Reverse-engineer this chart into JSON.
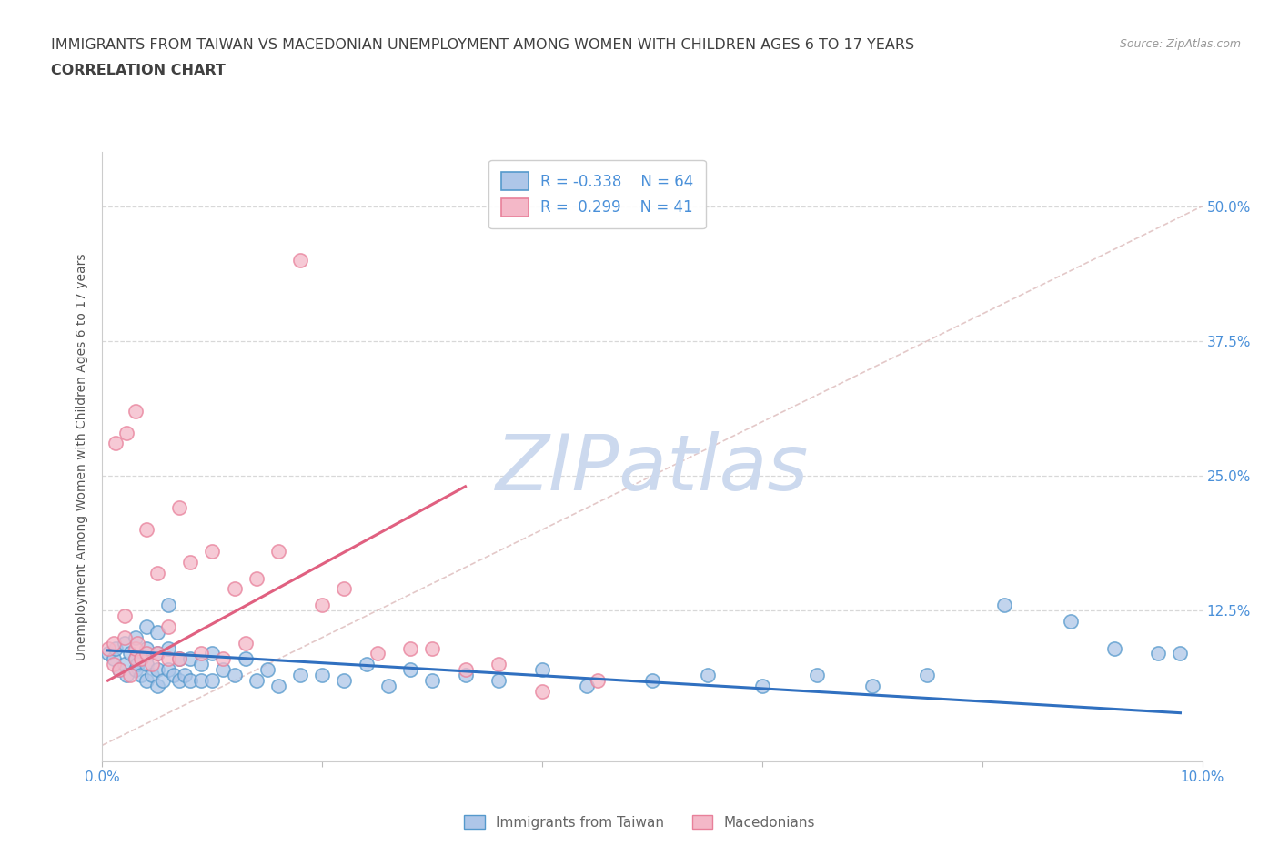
{
  "title_line1": "IMMIGRANTS FROM TAIWAN VS MACEDONIAN UNEMPLOYMENT AMONG WOMEN WITH CHILDREN AGES 6 TO 17 YEARS",
  "title_line2": "CORRELATION CHART",
  "source_text": "Source: ZipAtlas.com",
  "ylabel": "Unemployment Among Women with Children Ages 6 to 17 years",
  "xlim": [
    0.0,
    0.1
  ],
  "ylim": [
    -0.015,
    0.55
  ],
  "xticks": [
    0.0,
    0.02,
    0.04,
    0.06,
    0.08,
    0.1
  ],
  "xticklabels": [
    "0.0%",
    "",
    "",
    "",
    "",
    "10.0%"
  ],
  "yticks_right": [
    0.0,
    0.125,
    0.25,
    0.375,
    0.5
  ],
  "ytick_labels_right": [
    "",
    "12.5%",
    "25.0%",
    "37.5%",
    "50.0%"
  ],
  "taiwan_color": "#aec6e8",
  "macedonian_color": "#f4b8c8",
  "taiwan_edge_color": "#5599cc",
  "macedonian_edge_color": "#e8809a",
  "taiwan_line_color": "#3070c0",
  "macedonian_line_color": "#e06080",
  "diagonal_line_color": "#cccccc",
  "watermark_color": "#ccd9ee",
  "watermark_text": "ZIPatlas",
  "background_color": "#ffffff",
  "grid_color": "#d8d8d8",
  "title_color": "#404040",
  "tick_label_color": "#4a90d9",
  "taiwan_scatter_x": [
    0.0005,
    0.001,
    0.0012,
    0.0015,
    0.002,
    0.002,
    0.0022,
    0.0025,
    0.003,
    0.003,
    0.003,
    0.0032,
    0.0035,
    0.004,
    0.004,
    0.004,
    0.004,
    0.0045,
    0.005,
    0.005,
    0.005,
    0.005,
    0.0055,
    0.006,
    0.006,
    0.006,
    0.0065,
    0.007,
    0.007,
    0.0075,
    0.008,
    0.008,
    0.009,
    0.009,
    0.01,
    0.01,
    0.011,
    0.012,
    0.013,
    0.014,
    0.015,
    0.016,
    0.018,
    0.02,
    0.022,
    0.024,
    0.026,
    0.028,
    0.03,
    0.033,
    0.036,
    0.04,
    0.044,
    0.05,
    0.055,
    0.06,
    0.065,
    0.07,
    0.075,
    0.082,
    0.088,
    0.092,
    0.096,
    0.098
  ],
  "taiwan_scatter_y": [
    0.085,
    0.08,
    0.09,
    0.07,
    0.075,
    0.095,
    0.065,
    0.085,
    0.07,
    0.08,
    0.1,
    0.075,
    0.065,
    0.06,
    0.075,
    0.09,
    0.11,
    0.065,
    0.055,
    0.07,
    0.085,
    0.105,
    0.06,
    0.07,
    0.09,
    0.13,
    0.065,
    0.06,
    0.08,
    0.065,
    0.06,
    0.08,
    0.06,
    0.075,
    0.06,
    0.085,
    0.07,
    0.065,
    0.08,
    0.06,
    0.07,
    0.055,
    0.065,
    0.065,
    0.06,
    0.075,
    0.055,
    0.07,
    0.06,
    0.065,
    0.06,
    0.07,
    0.055,
    0.06,
    0.065,
    0.055,
    0.065,
    0.055,
    0.065,
    0.13,
    0.115,
    0.09,
    0.085,
    0.085
  ],
  "macedonian_scatter_x": [
    0.0005,
    0.001,
    0.001,
    0.0012,
    0.0015,
    0.002,
    0.002,
    0.0022,
    0.0025,
    0.003,
    0.003,
    0.003,
    0.0032,
    0.0035,
    0.004,
    0.004,
    0.0045,
    0.005,
    0.005,
    0.006,
    0.006,
    0.007,
    0.007,
    0.008,
    0.009,
    0.01,
    0.011,
    0.012,
    0.013,
    0.014,
    0.016,
    0.018,
    0.02,
    0.022,
    0.025,
    0.028,
    0.03,
    0.033,
    0.036,
    0.04,
    0.045
  ],
  "macedonian_scatter_y": [
    0.09,
    0.095,
    0.075,
    0.28,
    0.07,
    0.1,
    0.12,
    0.29,
    0.065,
    0.08,
    0.09,
    0.31,
    0.095,
    0.08,
    0.085,
    0.2,
    0.075,
    0.085,
    0.16,
    0.08,
    0.11,
    0.08,
    0.22,
    0.17,
    0.085,
    0.18,
    0.08,
    0.145,
    0.095,
    0.155,
    0.18,
    0.45,
    0.13,
    0.145,
    0.085,
    0.09,
    0.09,
    0.07,
    0.075,
    0.05,
    0.06
  ],
  "taiwan_line_x0": 0.0005,
  "taiwan_line_x1": 0.098,
  "taiwan_line_y0": 0.088,
  "taiwan_line_y1": 0.03,
  "macedonian_line_x0": 0.0005,
  "macedonian_line_x1": 0.033,
  "macedonian_line_y0": 0.06,
  "macedonian_line_y1": 0.24
}
